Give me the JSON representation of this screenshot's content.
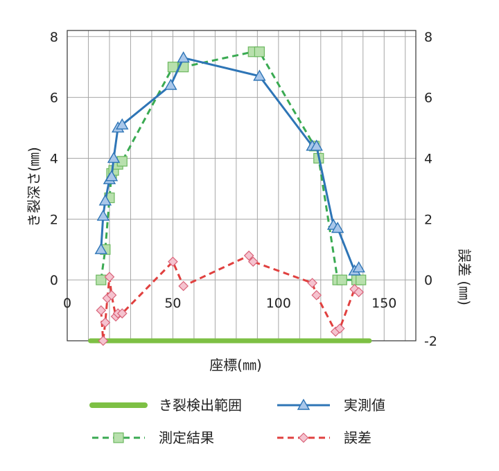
{
  "chart_data": {
    "type": "line",
    "xlabel": "座標(㎜)",
    "ylabel": "き裂深さ(㎜)",
    "y2label": "誤差 (㎜)",
    "xlim": [
      0,
      165
    ],
    "ylim": [
      -2,
      8.2
    ],
    "y2lim": [
      -2,
      8.2
    ],
    "xticks": [
      0,
      50,
      100,
      150
    ],
    "yticks": [
      0,
      2,
      4,
      6,
      8
    ],
    "y2ticks": [
      -2,
      0,
      2,
      4,
      6,
      8
    ],
    "xtick_labels": [
      "0",
      "50",
      "100",
      "150"
    ],
    "ytick_labels": [
      "0",
      "2",
      "4",
      "6",
      "8"
    ],
    "y2tick_labels": [
      "-2",
      "0",
      "2",
      "4",
      "6",
      "8"
    ],
    "grid": true,
    "legend_position": "bottom",
    "series": [
      {
        "name": "き裂検出範囲",
        "color": "#7dc044",
        "axis": "left",
        "style": "thick-line",
        "x": [
          11,
          143
        ],
        "y": [
          -2,
          -2
        ]
      },
      {
        "name": "実測値",
        "color": "#2e75b6",
        "axis": "left",
        "style": "solid-triangle",
        "x": [
          16,
          17,
          18,
          20,
          21,
          22,
          24,
          26,
          49,
          55,
          91,
          116,
          118,
          126,
          128,
          136,
          138
        ],
        "y": [
          1.0,
          2.1,
          2.6,
          3.3,
          3.4,
          4.0,
          5.0,
          5.1,
          6.4,
          7.3,
          6.7,
          4.4,
          4.4,
          1.8,
          1.7,
          0.3,
          0.4
        ]
      },
      {
        "name": "測定結果",
        "color": "#3aaa52",
        "axis": "left",
        "style": "dashed-square",
        "x": [
          16,
          18,
          20,
          21,
          22,
          24,
          26,
          50,
          55,
          88,
          91,
          117,
          119,
          128,
          130,
          137,
          139
        ],
        "y": [
          0.0,
          1.0,
          2.7,
          3.5,
          3.6,
          3.8,
          3.9,
          7.0,
          7.0,
          7.5,
          7.5,
          4.4,
          4.0,
          0.0,
          0.0,
          0.0,
          0.0
        ]
      },
      {
        "name": "誤差",
        "color": "#e0403f",
        "axis": "right",
        "style": "dashed-diamond",
        "x": [
          16,
          17,
          18,
          19,
          20,
          21,
          23,
          24,
          26,
          50,
          55,
          86,
          88,
          116,
          118,
          127,
          129,
          136,
          138
        ],
        "y": [
          -1.0,
          -2.0,
          -1.4,
          -0.6,
          0.1,
          -0.5,
          -1.2,
          -1.1,
          -1.1,
          0.6,
          -0.2,
          0.8,
          0.6,
          -0.1,
          -0.5,
          -1.7,
          -1.6,
          -0.3,
          -0.4
        ]
      }
    ]
  }
}
